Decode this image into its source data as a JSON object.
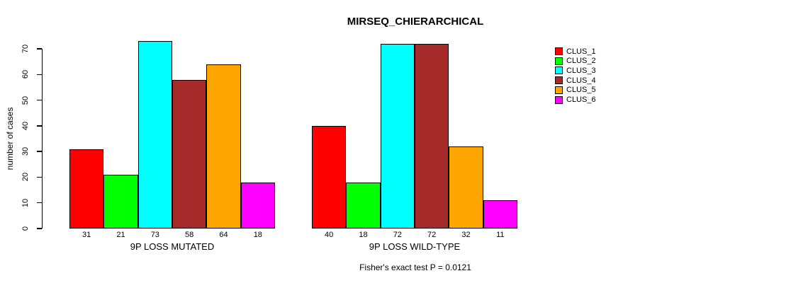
{
  "chart_data": {
    "type": "bar",
    "title": "MIRSEQ_CHIERARCHICAL",
    "ylabel": "number of cases",
    "xlabel": "",
    "ylim": [
      0,
      70
    ],
    "yticks": [
      0,
      10,
      20,
      30,
      40,
      50,
      60,
      70
    ],
    "grid": false,
    "categories": [
      "9P LOSS MUTATED",
      "9P LOSS WILD-TYPE"
    ],
    "series": [
      {
        "name": "CLUS_1",
        "color": "#FF0000",
        "values": [
          31,
          40
        ]
      },
      {
        "name": "CLUS_2",
        "color": "#00FF00",
        "values": [
          21,
          18
        ]
      },
      {
        "name": "CLUS_3",
        "color": "#00FFFF",
        "values": [
          73,
          72
        ]
      },
      {
        "name": "CLUS_4",
        "color": "#A52A2A",
        "values": [
          58,
          72
        ]
      },
      {
        "name": "CLUS_5",
        "color": "#FFA500",
        "values": [
          64,
          32
        ]
      },
      {
        "name": "CLUS_6",
        "color": "#FF00FF",
        "values": [
          18,
          11
        ]
      }
    ],
    "bar_value_labels_shown": true,
    "legend_position": "right",
    "footer": "Fisher's exact test P = 0.0121"
  }
}
